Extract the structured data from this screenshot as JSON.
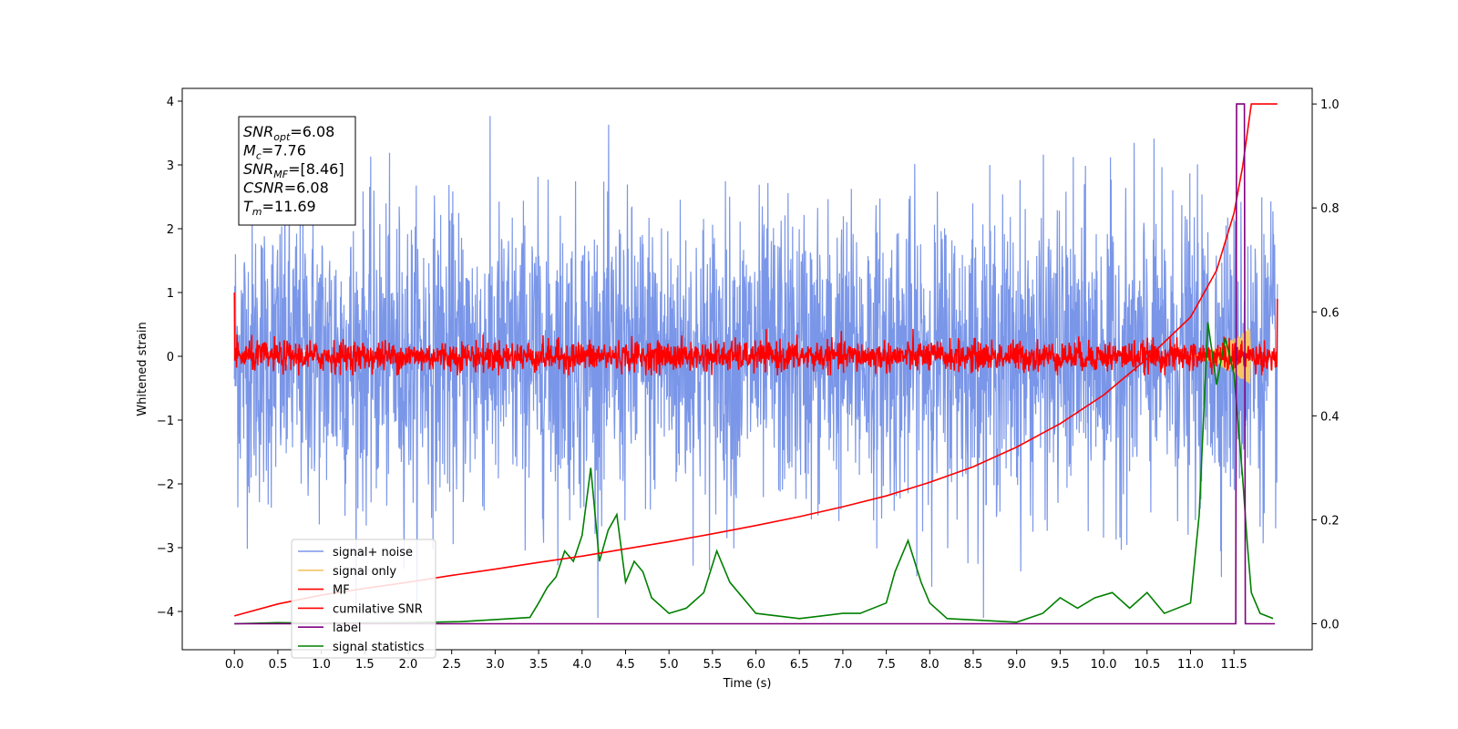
{
  "chart_data": {
    "type": "line",
    "xlabel": "Time (s)",
    "ylabel": "Whitened strain",
    "xlim": [
      -0.6,
      12.4
    ],
    "ylim": [
      -4.6,
      4.2
    ],
    "y2lim": [
      -0.05,
      1.03
    ],
    "xticks": [
      0.0,
      0.5,
      1.0,
      1.5,
      2.0,
      2.5,
      3.0,
      3.5,
      4.0,
      4.5,
      5.0,
      5.5,
      6.0,
      6.5,
      7.0,
      7.5,
      8.0,
      8.5,
      9.0,
      9.5,
      10.0,
      10.5,
      11.0,
      11.5
    ],
    "xtick_labels": [
      "0.0",
      "0.5",
      "1.0",
      "1.5",
      "2.0",
      "2.5",
      "3.0",
      "3.5",
      "4.0",
      "4.5",
      "5.0",
      "5.5",
      "6.0",
      "6.5",
      "7.0",
      "7.5",
      "8.0",
      "8.5",
      "9.0",
      "9.5",
      "10.0",
      "10.5",
      "11.0",
      "11.5"
    ],
    "yticks": [
      -4,
      -3,
      -2,
      -1,
      0,
      1,
      2,
      3,
      4
    ],
    "ytick_labels": [
      "−4",
      "−3",
      "−2",
      "−1",
      "0",
      "1",
      "2",
      "3",
      "4"
    ],
    "y2ticks": [
      0.0,
      0.2,
      0.4,
      0.6,
      0.8,
      1.0
    ],
    "y2tick_labels": [
      "0.0",
      "0.2",
      "0.4",
      "0.6",
      "0.8",
      "1.0"
    ],
    "grid": false,
    "legend_placement": "lower-left",
    "annotation": {
      "lines": [
        {
          "sym": "SNR",
          "sub": "opt",
          "value": "=6.08"
        },
        {
          "sym": "M",
          "sub": "c",
          "value": "=7.76"
        },
        {
          "sym": "SNR",
          "sub": "MF",
          "value": "=[8.46]"
        },
        {
          "sym": "CSNR",
          "sub": "",
          "value": "=6.08"
        },
        {
          "sym": "T",
          "sub": "m",
          "value": "=11.69"
        }
      ]
    },
    "series": [
      {
        "name": "signal+ noise",
        "color": "#7a96e8",
        "axis": "left",
        "kind": "noise",
        "x_range": [
          0,
          12
        ],
        "amplitude_envelope": [
          -4.1,
          3.8
        ]
      },
      {
        "name": "signal only",
        "color": "#f5c566",
        "axis": "left",
        "kind": "chirp",
        "x_range": [
          11.0,
          11.69
        ],
        "peak_amplitude": 0.45
      },
      {
        "name": "MF",
        "color": "#ff0000",
        "axis": "left",
        "kind": "noise",
        "x_range": [
          0,
          12
        ],
        "amplitude_envelope": [
          -0.3,
          0.45
        ]
      },
      {
        "name": "cumilative SNR",
        "color": "#ff0000",
        "axis": "right",
        "x": [
          0.0,
          0.5,
          1.0,
          1.5,
          2.0,
          2.5,
          3.0,
          3.5,
          4.0,
          4.5,
          5.0,
          5.5,
          6.0,
          6.5,
          7.0,
          7.5,
          8.0,
          8.5,
          9.0,
          9.5,
          10.0,
          10.5,
          11.0,
          11.3,
          11.5,
          11.6,
          11.7,
          12.0
        ],
        "y": [
          0.015,
          0.038,
          0.055,
          0.068,
          0.08,
          0.093,
          0.105,
          0.118,
          0.13,
          0.144,
          0.158,
          0.173,
          0.189,
          0.206,
          0.225,
          0.246,
          0.272,
          0.302,
          0.34,
          0.385,
          0.44,
          0.51,
          0.59,
          0.68,
          0.79,
          0.88,
          1.0,
          1.0
        ]
      },
      {
        "name": "label",
        "color": "#800080",
        "axis": "right",
        "x": [
          0.0,
          11.52,
          11.53,
          11.62,
          11.63,
          11.82,
          11.97
        ],
        "y": [
          0.0,
          0.0,
          1.0,
          1.0,
          0.0,
          0.0,
          0.0
        ]
      },
      {
        "name": "signal statistics",
        "color": "#008000",
        "axis": "right",
        "x": [
          0.0,
          0.5,
          1.0,
          2.0,
          2.6,
          3.0,
          3.4,
          3.5,
          3.6,
          3.7,
          3.8,
          3.9,
          4.0,
          4.1,
          4.2,
          4.3,
          4.4,
          4.5,
          4.6,
          4.7,
          4.8,
          5.0,
          5.2,
          5.4,
          5.55,
          5.7,
          5.9,
          6.0,
          6.5,
          7.0,
          7.2,
          7.5,
          7.6,
          7.75,
          7.9,
          8.0,
          8.2,
          9.0,
          9.3,
          9.5,
          9.7,
          9.9,
          10.1,
          10.3,
          10.5,
          10.7,
          11.0,
          11.1,
          11.2,
          11.3,
          11.4,
          11.5,
          11.6,
          11.65,
          11.7,
          11.8,
          11.95
        ],
        "y": [
          0.0,
          0.002,
          0.001,
          0.002,
          0.004,
          0.008,
          0.012,
          0.04,
          0.07,
          0.09,
          0.14,
          0.12,
          0.17,
          0.3,
          0.12,
          0.18,
          0.21,
          0.08,
          0.12,
          0.1,
          0.05,
          0.02,
          0.03,
          0.06,
          0.14,
          0.08,
          0.04,
          0.02,
          0.01,
          0.02,
          0.02,
          0.04,
          0.1,
          0.16,
          0.08,
          0.04,
          0.01,
          0.003,
          0.02,
          0.05,
          0.03,
          0.05,
          0.06,
          0.03,
          0.06,
          0.02,
          0.04,
          0.21,
          0.58,
          0.46,
          0.55,
          0.48,
          0.28,
          0.16,
          0.06,
          0.02,
          0.01
        ]
      }
    ]
  }
}
